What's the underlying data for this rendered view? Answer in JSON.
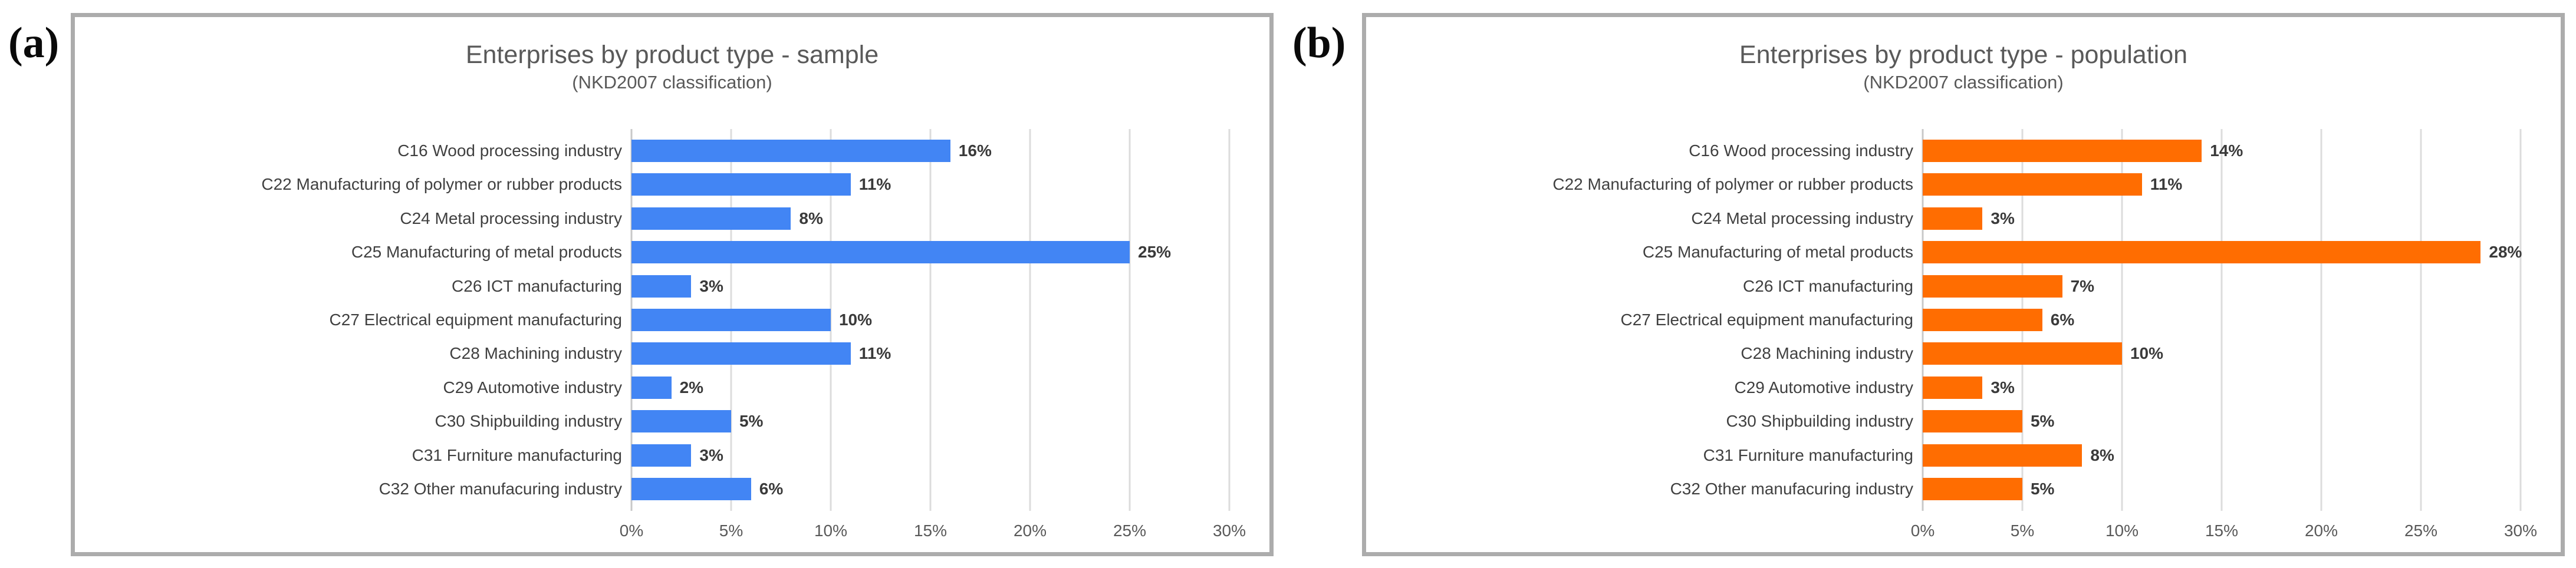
{
  "figure": {
    "panel_a_tag": "(a)",
    "panel_b_tag": "(b)"
  },
  "colors": {
    "bar_blue": "#4285F4",
    "bar_orange": "#FF6D01",
    "panel_border": "#ACACAC",
    "gridline": "#DCDCDC",
    "title_text": "#595959",
    "category_text": "#404040",
    "value_text": "#3A3A3A"
  },
  "chart_data": [
    {
      "id": "sample",
      "type": "bar",
      "orientation": "horizontal",
      "title": "Enterprises by product type - sample",
      "subtitle": "(NKD2007 classification)",
      "categories": [
        "C16 Wood processing industry",
        "C22 Manufacturing of polymer or rubber products",
        "C24 Metal processing industry",
        "C25 Manufacturing of metal products",
        "C26 ICT manufacturing",
        "C27 Electrical equipment manufacturing",
        "C28 Machining industry",
        "C29 Automotive industry",
        "C30 Shipbuilding industry",
        "C31 Furniture manufacturing",
        "C32 Other manufacuring industry"
      ],
      "values": [
        16,
        11,
        8,
        25,
        3,
        10,
        11,
        2,
        5,
        3,
        6
      ],
      "value_labels": [
        "16%",
        "11%",
        "8%",
        "25%",
        "3%",
        "10%",
        "11%",
        "2%",
        "5%",
        "3%",
        "6%"
      ],
      "bar_color": "#4285F4",
      "xlim": [
        0,
        30
      ],
      "x_ticks": [
        "0%",
        "5%",
        "10%",
        "15%",
        "20%",
        "25%",
        "30%"
      ],
      "grid": true,
      "legend": "none"
    },
    {
      "id": "population",
      "type": "bar",
      "orientation": "horizontal",
      "title": "Enterprises by product type - population",
      "subtitle": "(NKD2007 classification)",
      "categories": [
        "C16 Wood processing industry",
        "C22 Manufacturing of polymer or rubber products",
        "C24 Metal processing industry",
        "C25 Manufacturing of metal products",
        "C26 ICT manufacturing",
        "C27 Electrical equipment manufacturing",
        "C28 Machining industry",
        "C29 Automotive industry",
        "C30 Shipbuilding industry",
        "C31 Furniture manufacturing",
        "C32 Other manufacuring industry"
      ],
      "values": [
        14,
        11,
        3,
        28,
        7,
        6,
        10,
        3,
        5,
        8,
        5
      ],
      "value_labels": [
        "14%",
        "11%",
        "3%",
        "28%",
        "7%",
        "6%",
        "10%",
        "3%",
        "5%",
        "8%",
        "5%"
      ],
      "bar_color": "#FF6D01",
      "xlim": [
        0,
        30
      ],
      "x_ticks": [
        "0%",
        "5%",
        "10%",
        "15%",
        "20%",
        "25%",
        "30%"
      ],
      "grid": true,
      "legend": "none"
    }
  ]
}
